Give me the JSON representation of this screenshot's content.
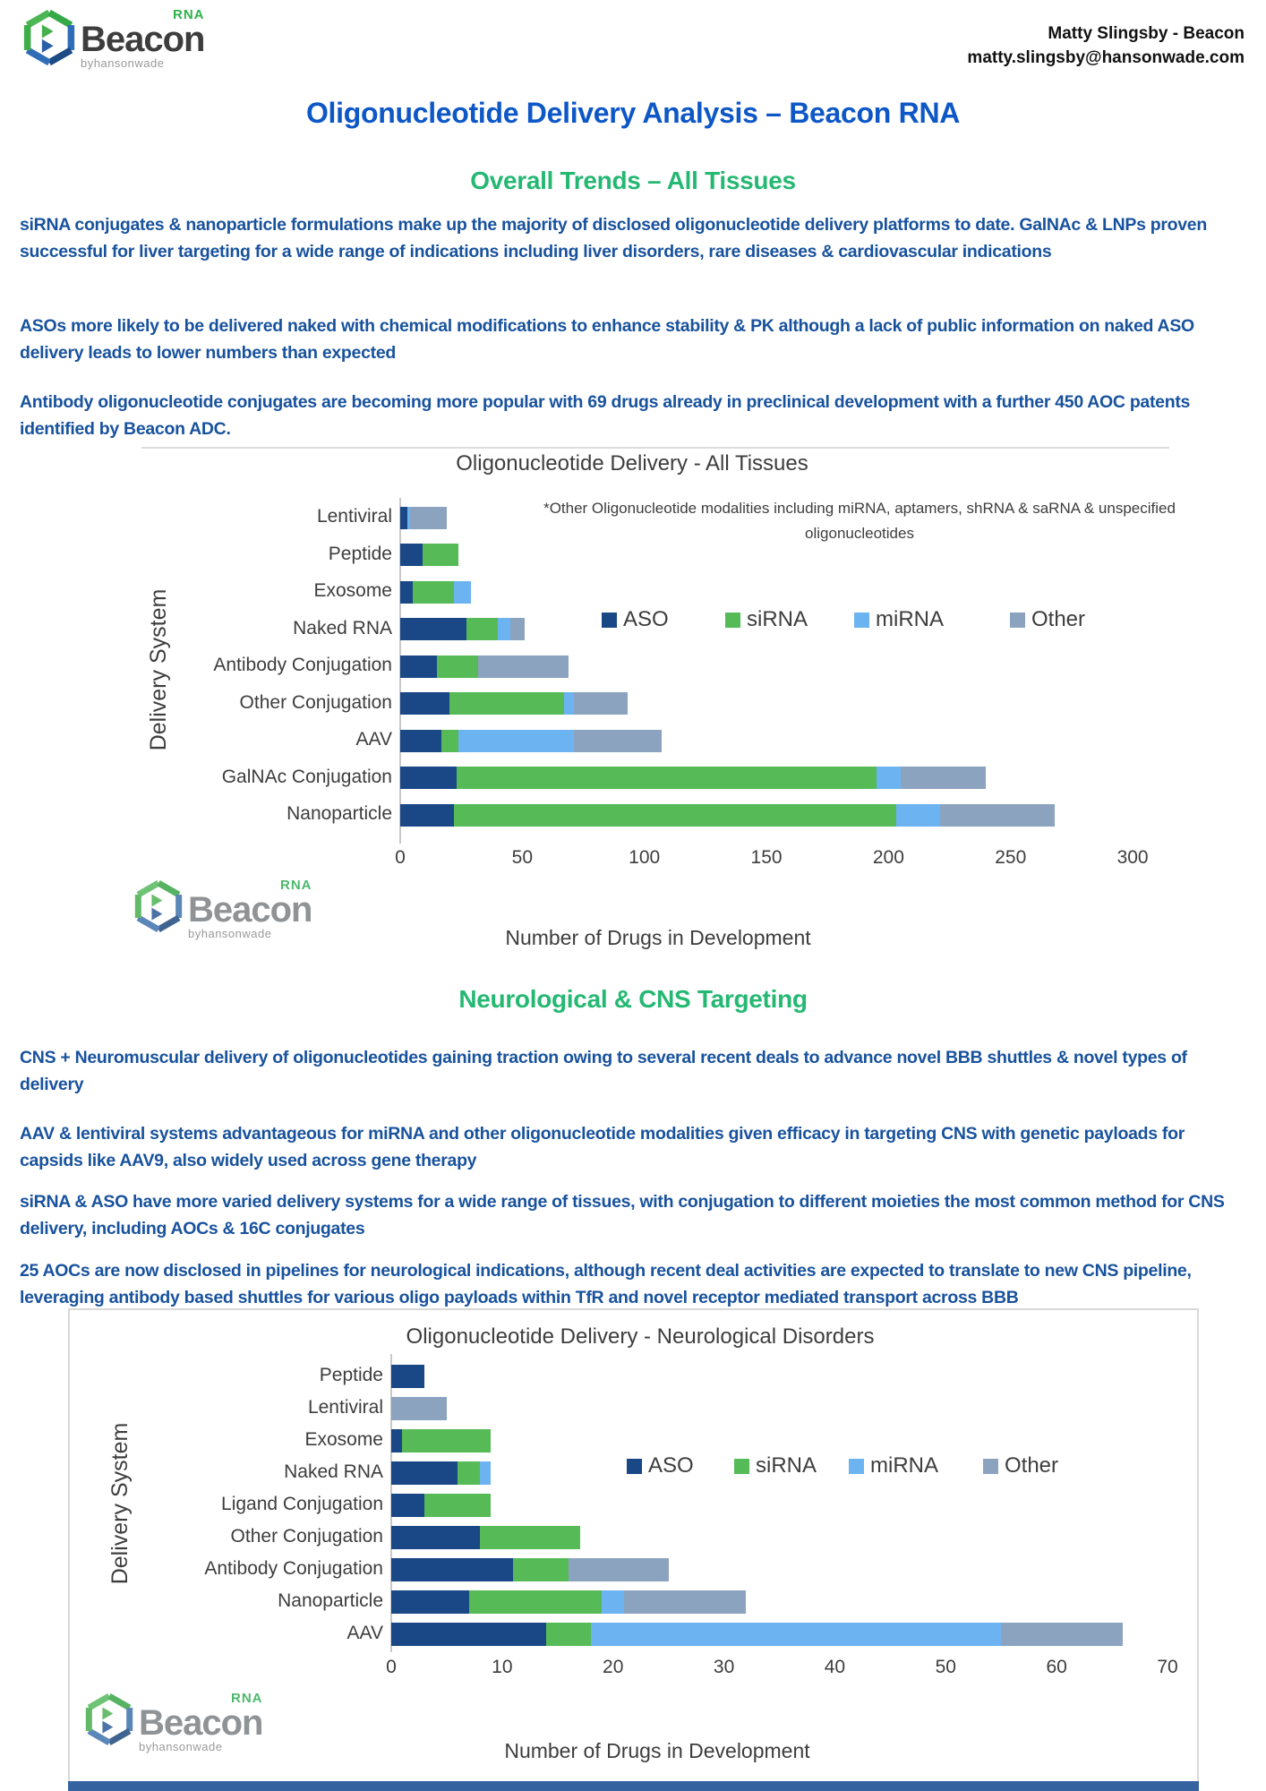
{
  "header": {
    "contact_name": "Matty Slingsby - Beacon",
    "contact_email": "matty.slingsby@hansonwade.com"
  },
  "logo": {
    "brand": "Beacon",
    "superscript": "RNA",
    "byline": "byhansonwade"
  },
  "page_title": "Oligonucleotide Delivery Analysis – Beacon RNA",
  "sections": [
    {
      "heading": "Overall Trends – All Tissues",
      "paragraphs": [
        "siRNA conjugates & nanoparticle formulations make up the majority of disclosed oligonucleotide delivery platforms to date. GalNAc & LNPs proven successful for liver targeting for a wide range of indications including liver disorders, rare diseases & cardiovascular indications",
        "ASOs more likely to be delivered naked with chemical modifications to enhance stability & PK although a lack of public information on naked ASO delivery leads to lower numbers than expected",
        "Antibody oligonucleotide conjugates are becoming more popular with 69 drugs already in preclinical development with a further 450 AOC patents identified by Beacon ADC."
      ]
    },
    {
      "heading": "Neurological & CNS Targeting",
      "paragraphs": [
        "CNS + Neuromuscular delivery of oligonucleotides gaining traction owing to several recent deals to advance novel BBB shuttles & novel types of delivery",
        "AAV & lentiviral systems advantageous for miRNA and other oligonucleotide modalities given efficacy in targeting CNS with genetic payloads for capsids like AAV9, also widely used across gene therapy",
        "siRNA & ASO have more varied delivery systems for a wide range of tissues, with conjugation to different moieties the most common method for CNS delivery, including AOCs & 16C conjugates",
        "25 AOCs are now disclosed in pipelines for neurological indications, although recent deal activities are expected to translate to new CNS pipeline, leveraging antibody based shuttles for various oligo payloads within TfR and novel receptor mediated transport across BBB"
      ]
    }
  ],
  "colors": {
    "title_blue": "#0d57c7",
    "heading_green": "#25b873",
    "body_blue": "#18529d",
    "aso": "#1a4786",
    "sirna": "#56bb57",
    "mirna": "#6cb3f2",
    "other": "#8ba3bf"
  },
  "chart_data": [
    {
      "type": "bar",
      "orientation": "horizontal",
      "stacked": true,
      "title": "Oligonucleotide Delivery - All Tissues",
      "annotation": "*Other Oligonucleotide modalities including miRNA, aptamers, shRNA & saRNA & unspecified oligonucleotides",
      "xlabel": "Number of Drugs in Development",
      "ylabel": "Delivery System",
      "xlim": [
        0,
        300
      ],
      "xticks": [
        0,
        50,
        100,
        150,
        200,
        250,
        300
      ],
      "legend_position": "center-right",
      "grid": false,
      "categories": [
        "Lentiviral",
        "Peptide",
        "Exosome",
        "Naked RNA",
        "Antibody Conjugation",
        "Other Conjugation",
        "AAV",
        "GalNAc Conjugation",
        "Nanoparticle"
      ],
      "series": [
        {
          "name": "ASO",
          "values": [
            3,
            9,
            5,
            27,
            15,
            20,
            17,
            23,
            22
          ]
        },
        {
          "name": "siRNA",
          "values": [
            0,
            15,
            17,
            13,
            17,
            47,
            7,
            172,
            181
          ]
        },
        {
          "name": "miRNA",
          "values": [
            1,
            0,
            7,
            5,
            0,
            4,
            47,
            10,
            18
          ]
        },
        {
          "name": "Other",
          "values": [
            15,
            0,
            0,
            6,
            37,
            22,
            36,
            35,
            47
          ]
        }
      ]
    },
    {
      "type": "bar",
      "orientation": "horizontal",
      "stacked": true,
      "title": "Oligonucleotide Delivery - Neurological Disorders",
      "annotation": "",
      "xlabel": "Number of Drugs in Development",
      "ylabel": "Delivery System",
      "xlim": [
        0,
        70
      ],
      "xticks": [
        0,
        10,
        20,
        30,
        40,
        50,
        60,
        70
      ],
      "legend_position": "center-right",
      "grid": false,
      "categories": [
        "Peptide",
        "Lentiviral",
        "Exosome",
        "Naked RNA",
        "Ligand Conjugation",
        "Other Conjugation",
        "Antibody Conjugation",
        "Nanoparticle",
        "AAV"
      ],
      "series": [
        {
          "name": "ASO",
          "values": [
            3,
            0,
            1,
            6,
            3,
            8,
            11,
            7,
            14
          ]
        },
        {
          "name": "siRNA",
          "values": [
            0,
            0,
            8,
            2,
            6,
            9,
            5,
            12,
            4
          ]
        },
        {
          "name": "miRNA",
          "values": [
            0,
            0,
            0,
            1,
            0,
            0,
            0,
            2,
            37
          ]
        },
        {
          "name": "Other",
          "values": [
            0,
            5,
            0,
            0,
            0,
            0,
            9,
            11,
            11
          ]
        }
      ]
    }
  ],
  "legend": [
    "ASO",
    "siRNA",
    "miRNA",
    "Other"
  ]
}
